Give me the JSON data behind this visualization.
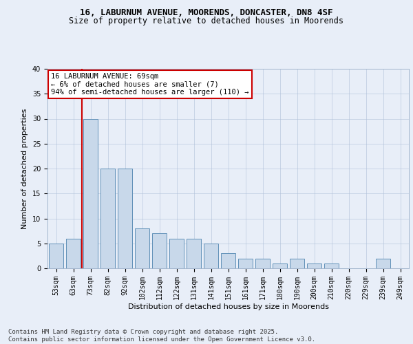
{
  "title1": "16, LABURNUM AVENUE, MOORENDS, DONCASTER, DN8 4SF",
  "title2": "Size of property relative to detached houses in Moorends",
  "xlabel": "Distribution of detached houses by size in Moorends",
  "ylabel": "Number of detached properties",
  "categories": [
    "53sqm",
    "63sqm",
    "73sqm",
    "82sqm",
    "92sqm",
    "102sqm",
    "112sqm",
    "122sqm",
    "131sqm",
    "141sqm",
    "151sqm",
    "161sqm",
    "171sqm",
    "180sqm",
    "190sqm",
    "200sqm",
    "210sqm",
    "220sqm",
    "229sqm",
    "239sqm",
    "249sqm"
  ],
  "values": [
    5,
    6,
    30,
    20,
    20,
    8,
    7,
    6,
    6,
    5,
    3,
    2,
    2,
    1,
    2,
    1,
    1,
    0,
    0,
    2,
    0
  ],
  "bar_color": "#c8d8ea",
  "bar_edge_color": "#6090b8",
  "reference_line_color": "#cc0000",
  "annotation_text": "16 LABURNUM AVENUE: 69sqm\n← 6% of detached houses are smaller (7)\n94% of semi-detached houses are larger (110) →",
  "annotation_box_color": "#ffffff",
  "annotation_box_edge": "#cc0000",
  "ylim": [
    0,
    40
  ],
  "yticks": [
    0,
    5,
    10,
    15,
    20,
    25,
    30,
    35,
    40
  ],
  "footnote": "Contains HM Land Registry data © Crown copyright and database right 2025.\nContains public sector information licensed under the Open Government Licence v3.0.",
  "background_color": "#e8eef8",
  "plot_bg_color": "#e8eef8",
  "title_fontsize": 9,
  "subtitle_fontsize": 8.5,
  "axis_label_fontsize": 8,
  "tick_fontsize": 7,
  "annotation_fontsize": 7.5,
  "footnote_fontsize": 6.5
}
